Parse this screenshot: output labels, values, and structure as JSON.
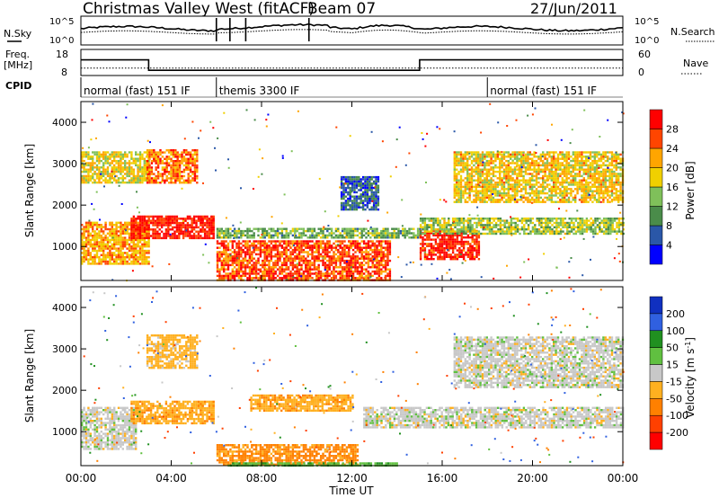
{
  "header": {
    "station": "Christmas Valley West (fitACF)",
    "beam": "Beam 07",
    "date": "27/Jun/2011"
  },
  "panels": {
    "nsky_label": "N.Sky",
    "nsearch_label": "N.Search",
    "freq_label_1": "Freq.",
    "freq_label_2": "[MHz]",
    "nave_label": "Nave",
    "cpid_label": "CPID",
    "nsky_ticks": [
      "10^5",
      "10^0"
    ],
    "nsearch_ticks": [
      "10^5",
      "10^0"
    ],
    "freq_ticks": [
      "18",
      "8"
    ],
    "nave_ticks": [
      "60",
      "0"
    ]
  },
  "cpid_segments": [
    {
      "label": "normal (fast) 151 IF",
      "start_hr": 0,
      "end_hr": 6
    },
    {
      "label": "themis 3300 IF",
      "start_hr": 6,
      "end_hr": 18
    },
    {
      "label": "normal (fast) 151 IF",
      "start_hr": 18,
      "end_hr": 24
    }
  ],
  "axes": {
    "ylabel": "Slant Range [km]",
    "xlabel": "Time UT",
    "xticks": [
      "00:00",
      "04:00",
      "08:00",
      "12:00",
      "16:00",
      "20:00",
      "00:00"
    ],
    "yticks": [
      "1000",
      "2000",
      "3000",
      "4000"
    ]
  },
  "colorbars": {
    "power_label": "Power [dB]",
    "power_ticks": [
      "4",
      "8",
      "12",
      "16",
      "20",
      "24",
      "28"
    ],
    "power_colors": [
      "#0000ff",
      "#2a57a8",
      "#4a8c4a",
      "#7fc05a",
      "#f0d000",
      "#ffa500",
      "#ff4500",
      "#ff0000"
    ],
    "velocity_label_main": "Velocity [m s",
    "velocity_label_exp": "-1",
    "velocity_label_end": "]",
    "velocity_ticks": [
      "200",
      "100",
      "50",
      "15",
      "-15",
      "-50",
      "-100",
      "-200"
    ],
    "velocity_colors": [
      "#1030c0",
      "#3060e0",
      "#209020",
      "#60c040",
      "#c8c8c8",
      "#ffb020",
      "#ff8000",
      "#ff4000",
      "#ff0000"
    ]
  },
  "chart_data": [
    {
      "type": "line",
      "title": "Christmas Valley West (fitACF)",
      "series": [
        {
          "name": "N.Sky"
        },
        {
          "name": "N.Search"
        }
      ],
      "ylim": [
        1,
        100000
      ],
      "log_y": true,
      "x_range_hr": [
        0,
        24
      ]
    },
    {
      "type": "line",
      "series": [
        {
          "name": "Freq.",
          "x": [
            0,
            3,
            3,
            15,
            15,
            24
          ],
          "values": [
            14,
            14,
            10,
            10,
            14,
            14
          ]
        },
        {
          "name": "Nave",
          "x": [
            0,
            24
          ],
          "values": [
            17,
            17
          ]
        }
      ],
      "ylim": [
        8,
        18
      ],
      "y2lim": [
        0,
        60
      ]
    },
    {
      "type": "heatmap",
      "xlabel": "Time UT",
      "ylabel": "Slant Range [km]",
      "colorbar": "Power [dB]",
      "x_range_hr": [
        0,
        24
      ],
      "ylim": [
        180,
        4500
      ],
      "clim": [
        0,
        30
      ],
      "regions": [
        {
          "t": [
            0.0,
            3.0
          ],
          "r": [
            2550,
            3300
          ],
          "power": 17
        },
        {
          "t": [
            2.9,
            5.1
          ],
          "r": [
            2550,
            3350
          ],
          "power": 23
        },
        {
          "t": [
            0.0,
            3.0
          ],
          "r": [
            600,
            1600
          ],
          "power": 20
        },
        {
          "t": [
            2.2,
            5.9
          ],
          "r": [
            1200,
            1750
          ],
          "power": 28
        },
        {
          "t": [
            6.0,
            13.7
          ],
          "r": [
            200,
            1150
          ],
          "power": 25
        },
        {
          "t": [
            6.0,
            15.0
          ],
          "r": [
            1200,
            1450
          ],
          "power": 12
        },
        {
          "t": [
            11.5,
            13.2
          ],
          "r": [
            1900,
            2700
          ],
          "power": 6
        },
        {
          "t": [
            15.0,
            17.6
          ],
          "r": [
            700,
            1400
          ],
          "power": 27
        },
        {
          "t": [
            15.0,
            24.0
          ],
          "r": [
            1300,
            1700
          ],
          "power": 14
        },
        {
          "t": [
            16.5,
            24.0
          ],
          "r": [
            2100,
            3300
          ],
          "power": 18
        }
      ]
    },
    {
      "type": "heatmap",
      "xlabel": "Time UT",
      "ylabel": "Slant Range [km]",
      "colorbar": "Velocity [m s-1]",
      "x_range_hr": [
        0,
        24
      ],
      "ylim": [
        180,
        4500
      ],
      "clim": [
        -200,
        200
      ],
      "regions": [
        {
          "t": [
            0.0,
            2.4
          ],
          "r": [
            600,
            1600
          ],
          "velocity": 0
        },
        {
          "t": [
            2.2,
            5.9
          ],
          "r": [
            1200,
            1750
          ],
          "velocity": -40
        },
        {
          "t": [
            2.9,
            5.1
          ],
          "r": [
            2550,
            3350
          ],
          "velocity": -30
        },
        {
          "t": [
            6.0,
            12.3
          ],
          "r": [
            200,
            700
          ],
          "velocity": -60
        },
        {
          "t": [
            7.5,
            12.0
          ],
          "r": [
            1500,
            1900
          ],
          "velocity": -40
        },
        {
          "t": [
            12.5,
            24.0
          ],
          "r": [
            1100,
            1600
          ],
          "velocity": 0
        },
        {
          "t": [
            16.5,
            24.0
          ],
          "r": [
            2100,
            3300
          ],
          "velocity": 0
        },
        {
          "t": [
            6.5,
            14.0
          ],
          "r": [
            180,
            260
          ],
          "velocity": 40
        }
      ]
    }
  ]
}
